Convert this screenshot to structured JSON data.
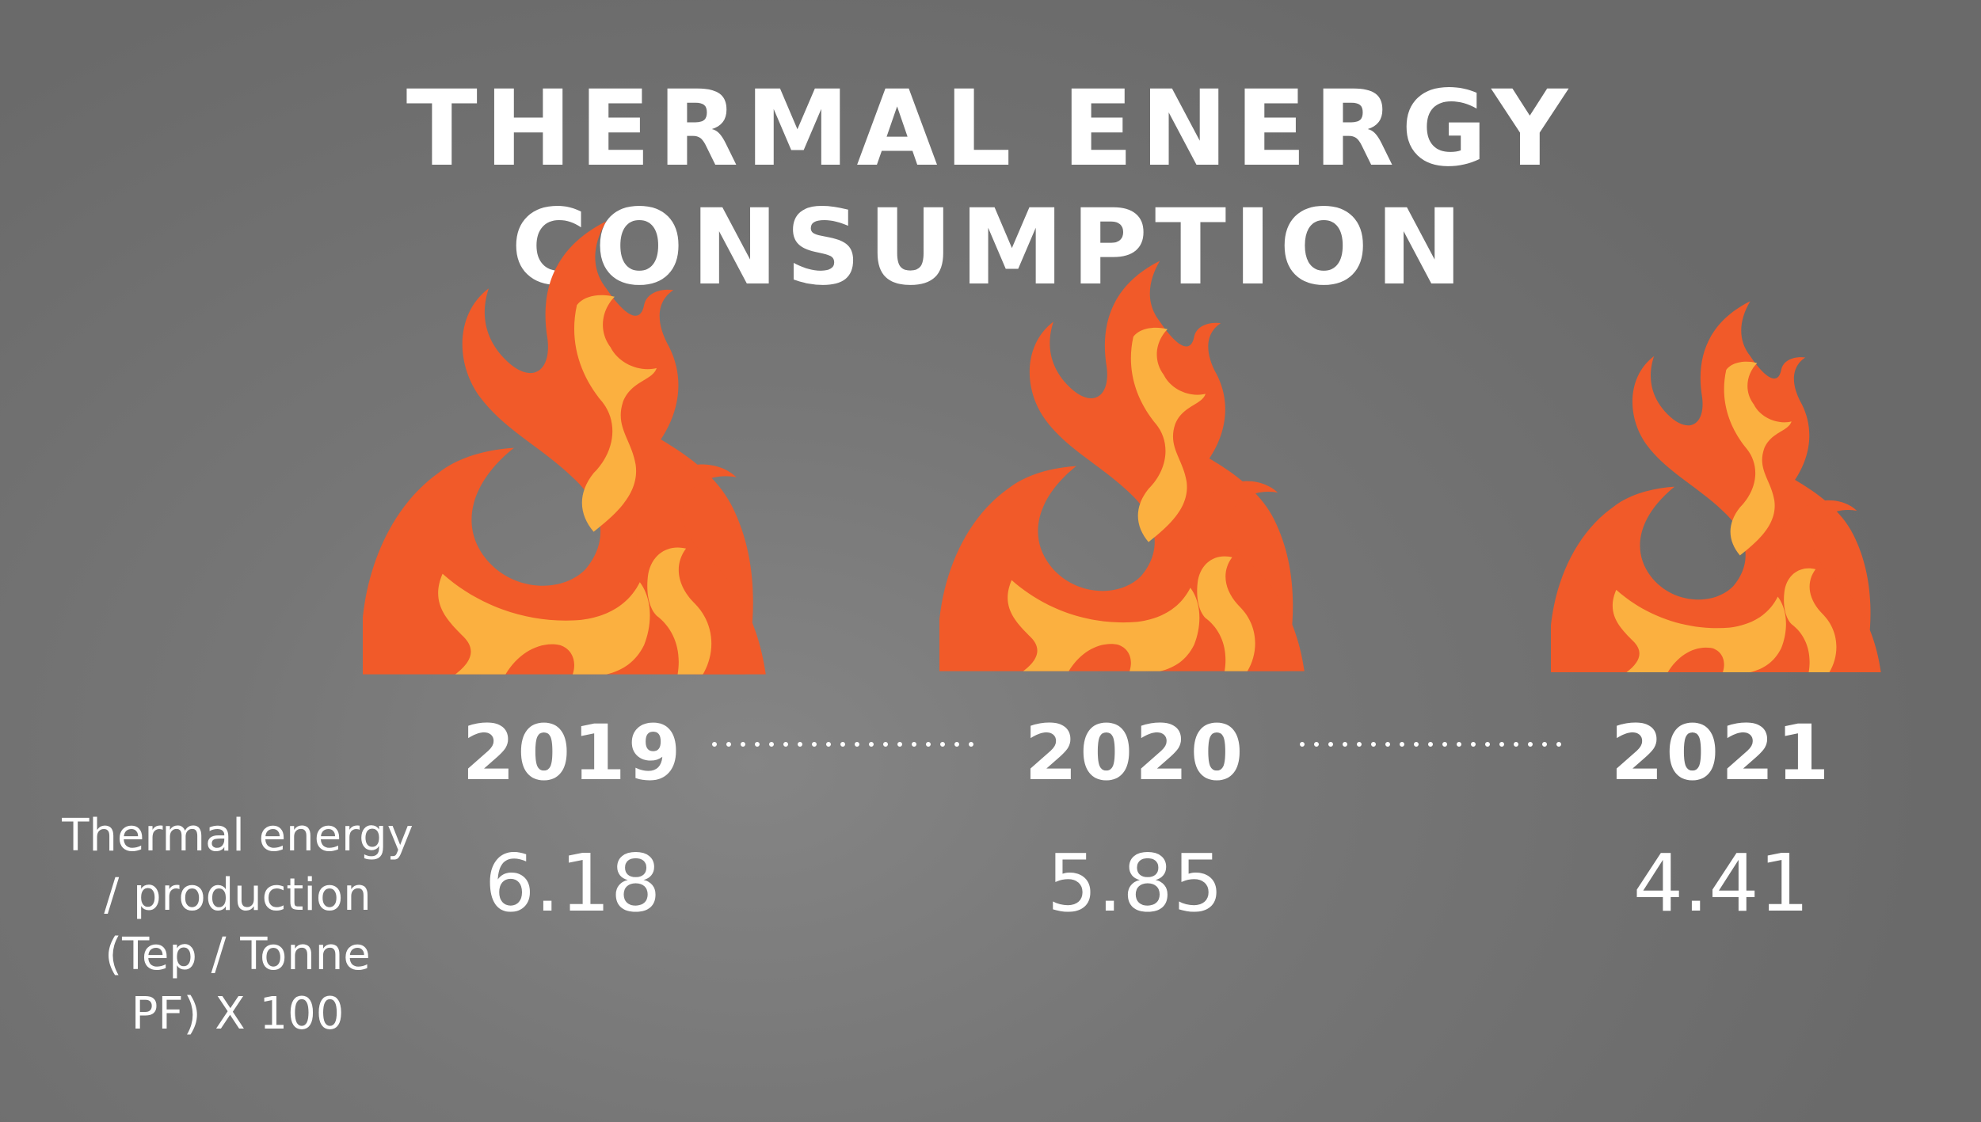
{
  "title": "THERMAL ENERGY CONSUMPTION",
  "metric_label": [
    "Thermal energy",
    "/ production",
    "(Tep / Tonne",
    "PF) X 100"
  ],
  "colors": {
    "flame_outer": "#F15A29",
    "flame_inner": "#FBB040",
    "dots": "#ffffff",
    "text": "#ffffff"
  },
  "icons": [
    "flame-icon",
    "flame-icon",
    "flame-icon"
  ],
  "chart_data": {
    "type": "pictograph",
    "title": "THERMAL ENERGY CONSUMPTION",
    "categories": [
      "2019",
      "2020",
      "2021"
    ],
    "series": [
      {
        "name": "Thermal energy / production (Tep / Tonne PF) X 100",
        "values": [
          6.18,
          5.85,
          4.41
        ]
      }
    ],
    "value_labels": [
      "6.18",
      "5.85",
      "4.41"
    ]
  }
}
